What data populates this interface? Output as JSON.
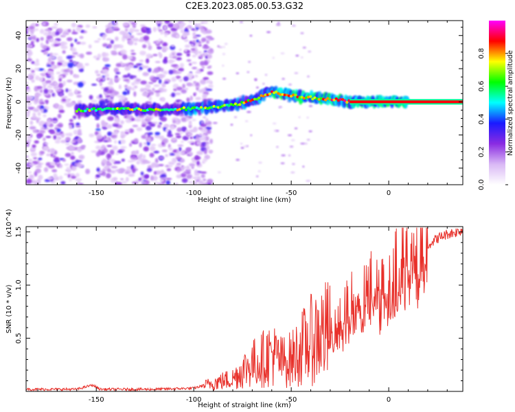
{
  "title": "C2E3.2023.085.00.53.G32",
  "chart_data": [
    {
      "type": "heatmap",
      "xlabel": "Height of straight line (km)",
      "ylabel": "Frequency (Hz)",
      "xlim": [
        -186,
        38
      ],
      "ylim": [
        -50,
        49
      ],
      "xticks": [
        -150,
        -100,
        -50,
        0
      ],
      "yticks": [
        -40,
        -20,
        0,
        20,
        40
      ],
      "colorbar": {
        "label": "Normalized spectral amplitude",
        "range": [
          0,
          1
        ],
        "ticks": [
          "0.0",
          "0.2",
          "0.4",
          "0.6",
          "0.8"
        ],
        "colors": [
          "#ffffff",
          "#d9b8f5",
          "#8a2be2",
          "#1a1aff",
          "#00ffff",
          "#00ff00",
          "#ffff00",
          "#ff0000",
          "#ff00ff"
        ]
      },
      "ridge": [
        [
          -155,
          -5
        ],
        [
          -140,
          -4
        ],
        [
          -120,
          -5
        ],
        [
          -100,
          -4
        ],
        [
          -90,
          -3
        ],
        [
          -80,
          -2
        ],
        [
          -70,
          1
        ],
        [
          -60,
          6
        ],
        [
          -55,
          5
        ],
        [
          -45,
          3
        ],
        [
          -35,
          2
        ],
        [
          -25,
          1
        ],
        [
          -20,
          0
        ],
        [
          0,
          0
        ],
        [
          38,
          0
        ]
      ]
    },
    {
      "type": "line",
      "xlabel": "Height of straight line (km)",
      "ylabel": "SNR (10 * v/v)",
      "y_multiplier": "(x10^4)",
      "xlim": [
        -186,
        38
      ],
      "ylim": [
        0,
        1.55
      ],
      "xticks": [
        -150,
        -100,
        -50,
        0
      ],
      "yticks": [
        0.5,
        1.0,
        1.5
      ],
      "ytick_labels": [
        "0.5",
        "1.0",
        "1.5"
      ],
      "series": [
        {
          "color": "#e8302a",
          "x": [
            -186,
            -160,
            -152,
            -148,
            -140,
            -120,
            -100,
            -90,
            -85,
            -80,
            -75,
            -70,
            -65,
            -60,
            -55,
            -50,
            -45,
            -40,
            -35,
            -30,
            -25,
            -20,
            -15,
            -10,
            -5,
            0,
            5,
            10,
            15,
            20,
            25,
            30,
            35,
            38
          ],
          "y": [
            0.02,
            0.02,
            0.06,
            0.02,
            0.02,
            0.02,
            0.03,
            0.08,
            0.1,
            0.12,
            0.2,
            0.26,
            0.3,
            0.36,
            0.28,
            0.3,
            0.4,
            0.48,
            0.55,
            0.56,
            0.62,
            0.78,
            0.82,
            0.92,
            0.96,
            1.0,
            1.12,
            1.25,
            1.33,
            1.38,
            1.44,
            1.48,
            1.5,
            1.52
          ]
        }
      ]
    }
  ]
}
